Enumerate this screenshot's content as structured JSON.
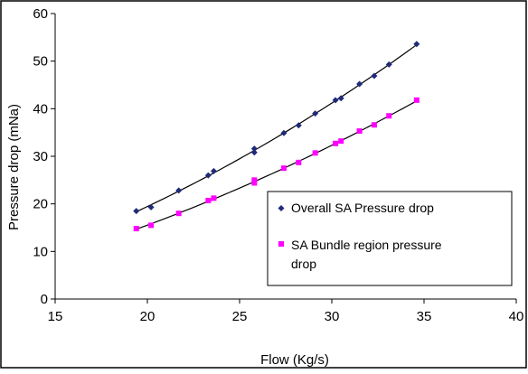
{
  "chart_data": {
    "type": "scatter",
    "xlabel": "Flow (Kg/s)",
    "ylabel": "Pressure drop (mNa)",
    "xlim": [
      15,
      40
    ],
    "ylim": [
      0,
      60
    ],
    "x_ticks": [
      "15",
      "20",
      "25",
      "30",
      "35",
      "40"
    ],
    "y_ticks": [
      "0",
      "10",
      "20",
      "30",
      "40",
      "50",
      "60"
    ],
    "grid": false,
    "legend_position": "right",
    "trendline": "smooth fit per series (black)",
    "series": [
      {
        "name": "Overall SA Pressure drop",
        "marker": "diamond",
        "color": "#1f2a7a",
        "x": [
          19.4,
          20.2,
          21.7,
          23.3,
          23.6,
          25.8,
          25.8,
          27.4,
          28.2,
          29.1,
          30.2,
          30.5,
          31.5,
          32.3,
          33.1,
          34.6
        ],
        "y": [
          18.5,
          19.3,
          22.8,
          26.0,
          26.9,
          30.8,
          31.6,
          34.9,
          36.5,
          39.0,
          41.8,
          42.2,
          45.2,
          46.9,
          49.3,
          53.6
        ]
      },
      {
        "name": "SA Bundle region pressure drop",
        "marker": "square",
        "color": "#ff00ff",
        "x": [
          19.4,
          20.2,
          21.7,
          23.3,
          23.6,
          25.8,
          25.8,
          27.4,
          28.2,
          29.1,
          30.2,
          30.5,
          31.5,
          32.3,
          33.1,
          34.6
        ],
        "y": [
          14.8,
          15.5,
          18.0,
          20.7,
          21.2,
          24.4,
          25.0,
          27.5,
          28.7,
          30.7,
          32.7,
          33.2,
          35.3,
          36.6,
          38.5,
          41.8
        ]
      }
    ]
  }
}
